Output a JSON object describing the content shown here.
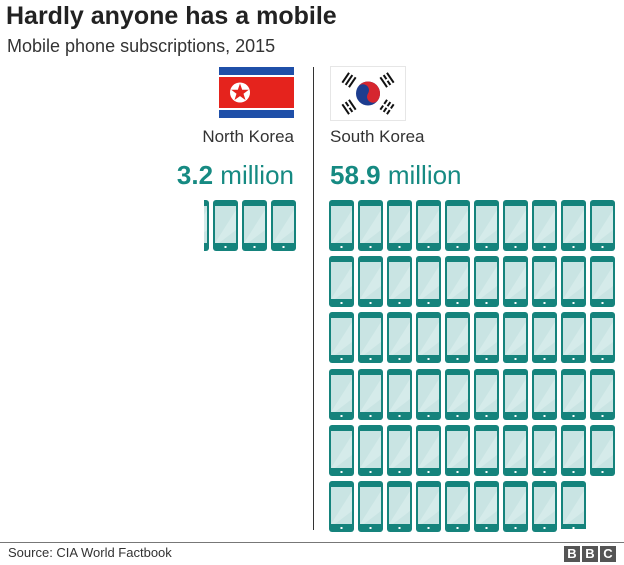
{
  "header": {
    "title": "Hardly anyone has a mobile",
    "subtitle": "Mobile phone subscriptions, 2015"
  },
  "countries": [
    {
      "name": "North Korea",
      "value_number": "3.2",
      "value_unit": " million",
      "flag": "north-korea-flag-icon"
    },
    {
      "name": "South Korea",
      "value_number": "58.9",
      "value_unit": " million",
      "flag": "south-korea-flag-icon"
    }
  ],
  "footer": {
    "source": "Source: CIA World Factbook",
    "logo": [
      "B",
      "B",
      "C"
    ]
  },
  "colors": {
    "accent": "#168a82",
    "phone_body": "#15837c",
    "phone_screen": "#c9e4e3"
  },
  "chart_data": {
    "type": "pictogram",
    "title": "Hardly anyone has a mobile",
    "subtitle": "Mobile phone subscriptions, 2015",
    "unit": "1 phone icon = 1 million subscriptions",
    "categories": [
      "North Korea",
      "South Korea"
    ],
    "values": [
      3.2,
      58.9
    ],
    "value_labels": [
      "3.2 million",
      "58.9 million"
    ],
    "source": "CIA World Factbook"
  }
}
